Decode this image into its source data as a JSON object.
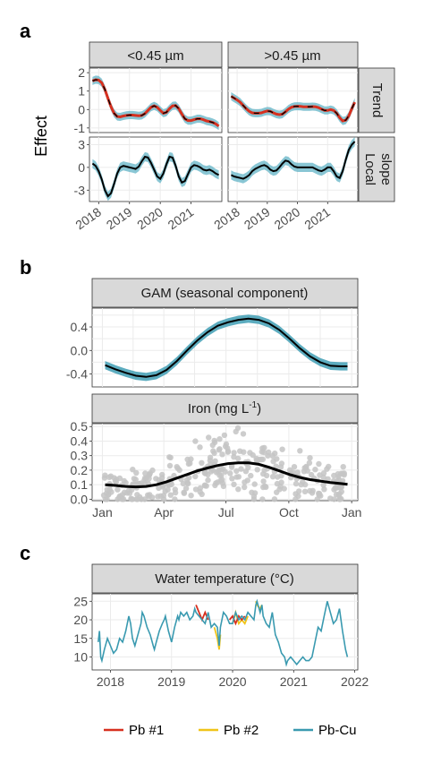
{
  "panels": {
    "a": "a",
    "b": "b",
    "c": "c"
  },
  "colors": {
    "pb1": "#d7301f",
    "pb2": "#f0c419",
    "pbcu": "#3a9ab0",
    "ribbon": "#6bb8c9",
    "strip_bg": "#d9d9d9",
    "grid": "#ebebeb",
    "points": "#c8c8c8"
  },
  "chart_data": [
    {
      "id": "a",
      "type": "line",
      "ylabel": "Effect",
      "facet_cols": [
        "<0.45 µm",
        ">0.45 µm"
      ],
      "facet_rows": [
        "Trend",
        "Local slope"
      ],
      "x_ticks": [
        "2018",
        "2019",
        "2020",
        "2021"
      ],
      "trend_y_ticks": [
        "2",
        "1",
        "0",
        "-1"
      ],
      "slope_y_ticks": [
        "3",
        "0",
        "-3"
      ],
      "xlim": [
        2017.7,
        2022.0
      ],
      "trend_ylim": [
        -1.25,
        2.25
      ],
      "slope_ylim": [
        -4.5,
        4.0
      ],
      "series": [
        {
          "panel": "<0.45 µm",
          "row": "Trend",
          "name": "",
          "x": [
            2017.8,
            2017.9,
            2018.0,
            2018.1,
            2018.2,
            2018.3,
            2018.4,
            2018.5,
            2018.6,
            2018.7,
            2018.8,
            2018.9,
            2019.0,
            2019.1,
            2019.2,
            2019.3,
            2019.4,
            2019.5,
            2019.6,
            2019.7,
            2019.8,
            2019.9,
            2020.0,
            2020.1,
            2020.2,
            2020.3,
            2020.4,
            2020.5,
            2020.6,
            2020.7,
            2020.8,
            2020.9,
            2021.0,
            2021.1,
            2021.2,
            2021.3,
            2021.4,
            2021.5,
            2021.6,
            2021.7,
            2021.8,
            2021.9
          ],
          "y": [
            1.55,
            1.62,
            1.6,
            1.45,
            1.1,
            0.6,
            0.15,
            -0.2,
            -0.38,
            -0.4,
            -0.35,
            -0.32,
            -0.3,
            -0.3,
            -0.32,
            -0.34,
            -0.32,
            -0.22,
            -0.05,
            0.12,
            0.2,
            0.12,
            -0.05,
            -0.2,
            -0.15,
            0.05,
            0.2,
            0.22,
            0.05,
            -0.25,
            -0.5,
            -0.6,
            -0.6,
            -0.55,
            -0.5,
            -0.5,
            -0.55,
            -0.62,
            -0.65,
            -0.7,
            -0.78,
            -0.9
          ]
        },
        {
          "panel": ">0.45 µm",
          "row": "Trend",
          "name": "",
          "x": [
            2017.8,
            2017.9,
            2018.0,
            2018.1,
            2018.2,
            2018.3,
            2018.4,
            2018.5,
            2018.6,
            2018.7,
            2018.8,
            2018.9,
            2019.0,
            2019.1,
            2019.2,
            2019.3,
            2019.4,
            2019.5,
            2019.6,
            2019.7,
            2019.8,
            2019.9,
            2020.0,
            2020.1,
            2020.2,
            2020.3,
            2020.4,
            2020.5,
            2020.6,
            2020.7,
            2020.8,
            2020.9,
            2021.0,
            2021.1,
            2021.2,
            2021.3,
            2021.4,
            2021.5,
            2021.6,
            2021.7,
            2021.8,
            2021.9
          ],
          "y": [
            0.72,
            0.62,
            0.52,
            0.4,
            0.22,
            0.05,
            -0.1,
            -0.18,
            -0.2,
            -0.2,
            -0.18,
            -0.12,
            -0.08,
            -0.1,
            -0.18,
            -0.25,
            -0.28,
            -0.25,
            -0.12,
            0.02,
            0.12,
            0.17,
            0.18,
            0.17,
            0.15,
            0.15,
            0.15,
            0.16,
            0.15,
            0.1,
            0.02,
            -0.05,
            -0.05,
            0.0,
            -0.05,
            -0.2,
            -0.45,
            -0.62,
            -0.58,
            -0.35,
            0.05,
            0.4
          ]
        },
        {
          "panel": "<0.45 µm",
          "row": "Local slope",
          "name": "",
          "x": [
            2017.8,
            2017.9,
            2018.0,
            2018.1,
            2018.2,
            2018.3,
            2018.4,
            2018.5,
            2018.6,
            2018.7,
            2018.8,
            2018.9,
            2019.0,
            2019.1,
            2019.2,
            2019.3,
            2019.4,
            2019.5,
            2019.6,
            2019.7,
            2019.8,
            2019.9,
            2020.0,
            2020.1,
            2020.2,
            2020.3,
            2020.4,
            2020.5,
            2020.6,
            2020.7,
            2020.8,
            2020.9,
            2021.0,
            2021.1,
            2021.2,
            2021.3,
            2021.4,
            2021.5,
            2021.6,
            2021.7,
            2021.8,
            2021.9
          ],
          "y": [
            0.5,
            0.2,
            -0.5,
            -1.6,
            -3.0,
            -3.8,
            -3.4,
            -2.2,
            -0.8,
            0.0,
            0.2,
            0.1,
            0.0,
            -0.1,
            -0.2,
            0.1,
            0.8,
            1.4,
            1.3,
            0.6,
            -0.3,
            -1.2,
            -1.5,
            -0.8,
            0.4,
            1.4,
            1.3,
            0.2,
            -1.2,
            -2.0,
            -1.8,
            -0.9,
            0.0,
            0.3,
            0.2,
            0.0,
            -0.3,
            -0.4,
            -0.3,
            -0.5,
            -0.8,
            -1.0
          ]
        },
        {
          "panel": ">0.45 µm",
          "row": "Local slope",
          "name": "",
          "x": [
            2017.8,
            2017.9,
            2018.0,
            2018.1,
            2018.2,
            2018.3,
            2018.4,
            2018.5,
            2018.6,
            2018.7,
            2018.8,
            2018.9,
            2019.0,
            2019.1,
            2019.2,
            2019.3,
            2019.4,
            2019.5,
            2019.6,
            2019.7,
            2019.8,
            2019.9,
            2020.0,
            2020.1,
            2020.2,
            2020.3,
            2020.4,
            2020.5,
            2020.6,
            2020.7,
            2020.8,
            2020.9,
            2021.0,
            2021.1,
            2021.2,
            2021.3,
            2021.4,
            2021.5,
            2021.6,
            2021.7,
            2021.8,
            2021.9
          ],
          "y": [
            -1.0,
            -1.2,
            -1.3,
            -1.4,
            -1.5,
            -1.3,
            -1.0,
            -0.5,
            -0.2,
            0.0,
            0.2,
            0.3,
            0.1,
            -0.3,
            -0.5,
            -0.4,
            0.0,
            0.5,
            0.9,
            0.8,
            0.4,
            0.1,
            0.0,
            0.0,
            0.0,
            0.0,
            0.0,
            0.0,
            -0.2,
            -0.4,
            -0.5,
            -0.3,
            0.0,
            0.0,
            -0.5,
            -1.2,
            -1.4,
            -0.5,
            1.0,
            2.3,
            3.0,
            3.4
          ]
        }
      ]
    },
    {
      "id": "b-gam",
      "type": "line",
      "title": "GAM (seasonal component)",
      "y_ticks": [
        "0.4",
        "0.0",
        "-0.4"
      ],
      "ylim": [
        -0.62,
        0.72
      ],
      "xlim": [
        1,
        365
      ],
      "series": [
        {
          "name": "",
          "x": [
            5,
            20,
            35,
            50,
            65,
            80,
            95,
            110,
            125,
            140,
            155,
            170,
            185,
            200,
            215,
            230,
            245,
            260,
            275,
            290,
            305,
            320,
            335,
            350,
            360
          ],
          "y": [
            -0.25,
            -0.32,
            -0.38,
            -0.43,
            -0.45,
            -0.42,
            -0.33,
            -0.18,
            0.0,
            0.17,
            0.31,
            0.42,
            0.48,
            0.52,
            0.54,
            0.52,
            0.46,
            0.35,
            0.2,
            0.04,
            -0.1,
            -0.2,
            -0.26,
            -0.27,
            -0.27
          ]
        }
      ]
    },
    {
      "id": "b-iron",
      "type": "scatter",
      "title": "Iron (mg L",
      "title_sup": "-1",
      "title_end": ")",
      "y_ticks": [
        "0.5",
        "0.4",
        "0.3",
        "0.2",
        "0.1",
        "0.0"
      ],
      "ylim": [
        -0.01,
        0.52
      ],
      "xlim": [
        -14,
        375
      ],
      "x_ticks": [
        "Jan",
        "Apr",
        "Jul",
        "Oct",
        "Jan"
      ],
      "x_tick_days": [
        1,
        91,
        182,
        274,
        366
      ],
      "smooth": {
        "x": [
          5,
          20,
          35,
          50,
          65,
          80,
          95,
          110,
          125,
          140,
          155,
          170,
          185,
          200,
          215,
          230,
          245,
          260,
          275,
          290,
          305,
          320,
          335,
          350,
          360
        ],
        "y": [
          0.1,
          0.095,
          0.088,
          0.085,
          0.088,
          0.1,
          0.12,
          0.145,
          0.17,
          0.195,
          0.215,
          0.232,
          0.245,
          0.25,
          0.25,
          0.24,
          0.22,
          0.195,
          0.17,
          0.15,
          0.135,
          0.125,
          0.115,
          0.108,
          0.102
        ]
      }
    },
    {
      "id": "c",
      "type": "line",
      "title": "Water temperature (°C)",
      "y_ticks": [
        "25",
        "20",
        "15",
        "10"
      ],
      "ylim": [
        6.5,
        27
      ],
      "xlim": [
        2017.7,
        2022.05
      ],
      "x_ticks": [
        "2018",
        "2019",
        "2020",
        "2021",
        "2022"
      ],
      "series": [
        {
          "name": "Pb #1",
          "color": "#d7301f"
        },
        {
          "name": "Pb #2",
          "color": "#f0c419"
        },
        {
          "name": "Pb-Cu",
          "color": "#3a9ab0"
        }
      ],
      "pbcu": {
        "x": [
          2017.8,
          2017.82,
          2017.84,
          2017.86,
          2017.9,
          2017.95,
          2018.0,
          2018.05,
          2018.1,
          2018.15,
          2018.2,
          2018.25,
          2018.3,
          2018.33,
          2018.36,
          2018.4,
          2018.45,
          2018.5,
          2018.52,
          2018.55,
          2018.6,
          2018.65,
          2018.7,
          2018.72,
          2018.75,
          2018.8,
          2018.85,
          2018.88,
          2018.9,
          2018.95,
          2019.0,
          2019.05,
          2019.1,
          2019.12,
          2019.15,
          2019.2,
          2019.25,
          2019.3,
          2019.35,
          2019.38,
          2019.4,
          2019.45,
          2019.5,
          2019.55,
          2019.6,
          2019.65,
          2019.7,
          2019.75,
          2019.78,
          2019.8,
          2019.85,
          2019.9,
          2019.95,
          2020.0,
          2020.05,
          2020.1,
          2020.15,
          2020.2,
          2020.25,
          2020.3,
          2020.35,
          2020.38,
          2020.4,
          2020.45,
          2020.48,
          2020.5,
          2020.55,
          2020.6,
          2020.65,
          2020.7,
          2020.75,
          2020.8,
          2020.85,
          2020.88,
          2020.9,
          2020.95,
          2021.0,
          2021.05,
          2021.1,
          2021.15,
          2021.2,
          2021.25,
          2021.3,
          2021.35,
          2021.4,
          2021.45,
          2021.5,
          2021.55,
          2021.6,
          2021.65,
          2021.7,
          2021.75,
          2021.8,
          2021.85,
          2021.88
        ],
        "y": [
          14,
          17,
          10,
          9,
          12,
          15,
          13,
          11,
          12,
          15,
          14,
          17,
          21,
          19,
          15,
          13,
          16,
          19,
          22,
          21,
          18,
          16,
          13,
          12,
          14,
          17,
          19,
          20,
          21,
          17,
          14,
          18,
          21,
          20,
          22,
          21,
          22,
          20,
          21,
          23,
          22,
          21,
          20,
          19,
          22,
          18,
          19,
          18,
          13,
          18,
          22,
          21,
          19,
          19,
          22,
          20,
          21,
          20,
          22,
          21,
          20,
          24,
          25,
          22,
          24,
          21,
          19,
          18,
          22,
          16,
          14,
          11,
          10,
          8,
          9,
          10,
          9,
          8,
          9,
          10,
          9,
          9,
          10,
          14,
          18,
          17,
          21,
          25,
          22,
          19,
          20,
          23,
          17,
          12,
          10
        ]
      },
      "pb1_segments": [
        {
          "x": [
            2019.4,
            2019.45,
            2019.5,
            2019.55,
            2019.6
          ],
          "y": [
            24,
            22,
            20,
            22,
            20
          ]
        },
        {
          "x": [
            2019.95,
            2020.0,
            2020.05,
            2020.1,
            2020.15,
            2020.2
          ],
          "y": [
            20,
            21,
            19,
            21,
            20,
            21
          ]
        }
      ],
      "pb2_segments": [
        {
          "x": [
            2019.7,
            2019.75,
            2019.78,
            2019.8
          ],
          "y": [
            18,
            15,
            12,
            16
          ]
        },
        {
          "x": [
            2020.0,
            2020.05,
            2020.1,
            2020.15,
            2020.2,
            2020.25
          ],
          "y": [
            19,
            22,
            19,
            20,
            19,
            21
          ]
        },
        {
          "x": [
            2020.38,
            2020.4,
            2020.45,
            2020.48
          ],
          "y": [
            25,
            24,
            23,
            24
          ]
        }
      ]
    }
  ],
  "legend": [
    {
      "name": "Pb #1",
      "color": "#d7301f"
    },
    {
      "name": "Pb #2",
      "color": "#f0c419"
    },
    {
      "name": "Pb-Cu",
      "color": "#3a9ab0"
    }
  ]
}
